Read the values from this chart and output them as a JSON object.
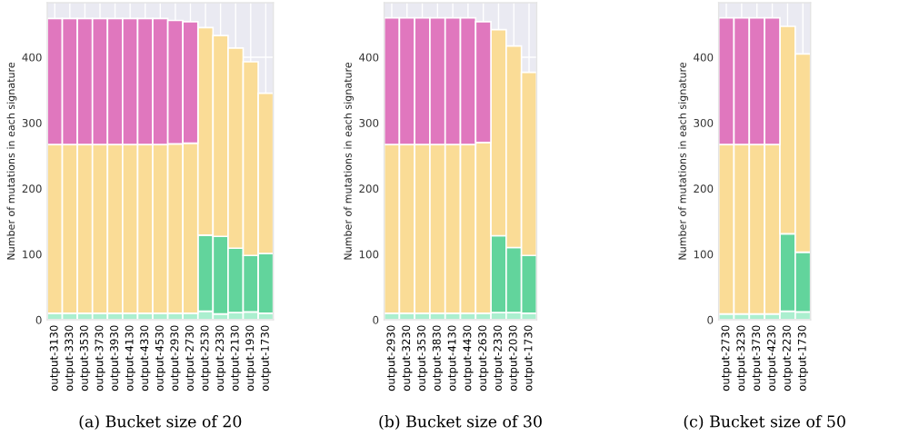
{
  "chart_data": [
    {
      "type": "bar",
      "stacked": true,
      "ylabel": "Number of mutations in each signature",
      "ylim": [
        0,
        483
      ],
      "yticks": [
        0,
        100,
        200,
        300,
        400
      ],
      "grid": true,
      "annotations": [
        "(a) Bucket size of 20"
      ],
      "categories": [
        "output-3130",
        "output-3330",
        "output-3530",
        "output-3730",
        "output-3930",
        "output-4130",
        "output-4330",
        "output-4530",
        "output-2930",
        "output-2730",
        "output-2530",
        "output-2330",
        "output-2130",
        "output-1930",
        "output-1730"
      ],
      "series": [
        {
          "color": "#abefcf",
          "values": [
            10,
            10,
            10,
            10,
            10,
            10,
            10,
            10,
            10,
            10,
            13,
            9,
            11,
            12,
            10
          ]
        },
        {
          "color": "#62d49c",
          "values": [
            null,
            null,
            null,
            null,
            null,
            null,
            null,
            null,
            null,
            null,
            116,
            118,
            98,
            86,
            91
          ]
        },
        {
          "color": "#fadc96",
          "values": [
            257,
            257,
            257,
            257,
            257,
            257,
            257,
            257,
            258,
            259,
            316,
            306,
            305,
            295,
            244
          ]
        },
        {
          "color": "#e077be",
          "values": [
            192,
            192,
            192,
            192,
            192,
            192,
            192,
            192,
            188,
            185,
            null,
            null,
            null,
            null,
            null
          ]
        }
      ]
    },
    {
      "type": "bar",
      "stacked": true,
      "ylabel": "Number of mutations in each signature",
      "ylim": [
        0,
        483
      ],
      "yticks": [
        0,
        100,
        200,
        300,
        400
      ],
      "grid": true,
      "annotations": [
        "(b) Bucket size of 30"
      ],
      "categories": [
        "output-2930",
        "output-3230",
        "output-3530",
        "output-3830",
        "output-4130",
        "output-4430",
        "output-2630",
        "output-2330",
        "output-2030",
        "output-1730"
      ],
      "series": [
        {
          "color": "#abefcf",
          "values": [
            10,
            10,
            10,
            10,
            10,
            10,
            10,
            11,
            11,
            10
          ]
        },
        {
          "color": "#62d49c",
          "values": [
            null,
            null,
            null,
            null,
            null,
            null,
            null,
            117,
            99,
            88
          ]
        },
        {
          "color": "#fadc96",
          "values": [
            257,
            257,
            257,
            257,
            257,
            257,
            260,
            314,
            307,
            279
          ]
        },
        {
          "color": "#e077be",
          "values": [
            193,
            193,
            193,
            193,
            193,
            193,
            184,
            null,
            null,
            null
          ]
        }
      ]
    },
    {
      "type": "bar",
      "stacked": true,
      "ylabel": "Number of mutations in each signature",
      "ylim": [
        0,
        483
      ],
      "yticks": [
        0,
        100,
        200,
        300,
        400
      ],
      "grid": true,
      "annotations": [
        "(c) Bucket size of 50"
      ],
      "categories": [
        "output-2730",
        "output-3230",
        "output-3730",
        "output-4230",
        "output-2230",
        "output-1730"
      ],
      "series": [
        {
          "color": "#abefcf",
          "values": [
            9,
            9,
            9,
            9,
            13,
            12
          ]
        },
        {
          "color": "#62d49c",
          "values": [
            null,
            null,
            null,
            null,
            118,
            91
          ]
        },
        {
          "color": "#fadc96",
          "values": [
            258,
            258,
            258,
            258,
            316,
            302
          ]
        },
        {
          "color": "#e077be",
          "values": [
            193,
            193,
            193,
            193,
            null,
            null
          ]
        }
      ]
    }
  ]
}
